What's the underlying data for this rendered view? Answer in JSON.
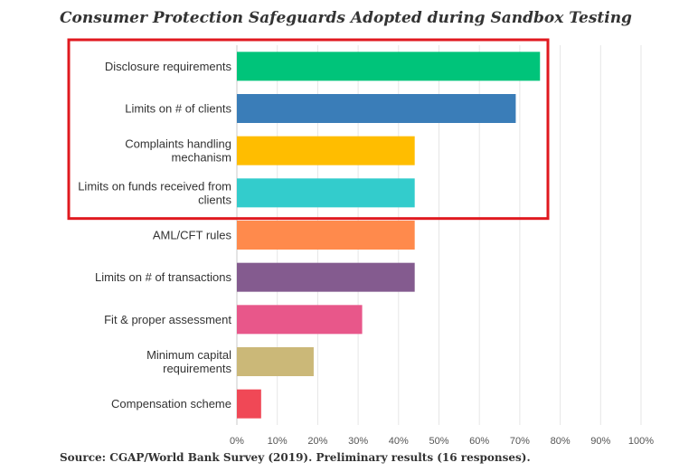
{
  "chart_data": {
    "type": "bar",
    "orientation": "horizontal",
    "title": "Consumer Protection Safeguards Adopted during Sandbox Testing",
    "source": "Source: CGAP/World Bank Survey (2019). Preliminary results (16 responses).",
    "categories": [
      "Disclosure requirements",
      "Limits on # of clients",
      "Complaints handling mechanism",
      "Limits on funds received from clients",
      "AML/CFT rules",
      "Limits on # of transactions",
      "Fit & proper assessment",
      "Minimum capital requirements",
      "Compensation scheme"
    ],
    "label_lines": [
      [
        "Disclosure requirements"
      ],
      [
        "Limits on # of clients"
      ],
      [
        "Complaints handling",
        "mechanism"
      ],
      [
        "Limits on funds received from",
        "clients"
      ],
      [
        "AML/CFT rules"
      ],
      [
        "Limits on # of transactions"
      ],
      [
        "Fit & proper assessment"
      ],
      [
        "Minimum capital",
        "requirements"
      ],
      [
        "Compensation scheme"
      ]
    ],
    "values": [
      75,
      69,
      44,
      44,
      44,
      44,
      31,
      19,
      6
    ],
    "colors": [
      "#00c47a",
      "#3a7db8",
      "#ffbd00",
      "#33cccc",
      "#ff8a4c",
      "#845b8f",
      "#e8578a",
      "#cbb878",
      "#f04856"
    ],
    "xlim": [
      0,
      100
    ],
    "xticks": [
      "0%",
      "10%",
      "20%",
      "30%",
      "40%",
      "50%",
      "60%",
      "70%",
      "80%",
      "90%",
      "100%"
    ],
    "grid": true,
    "highlight": {
      "categories_indexes": [
        0,
        1,
        2,
        3
      ],
      "color": "#e0191f"
    }
  }
}
